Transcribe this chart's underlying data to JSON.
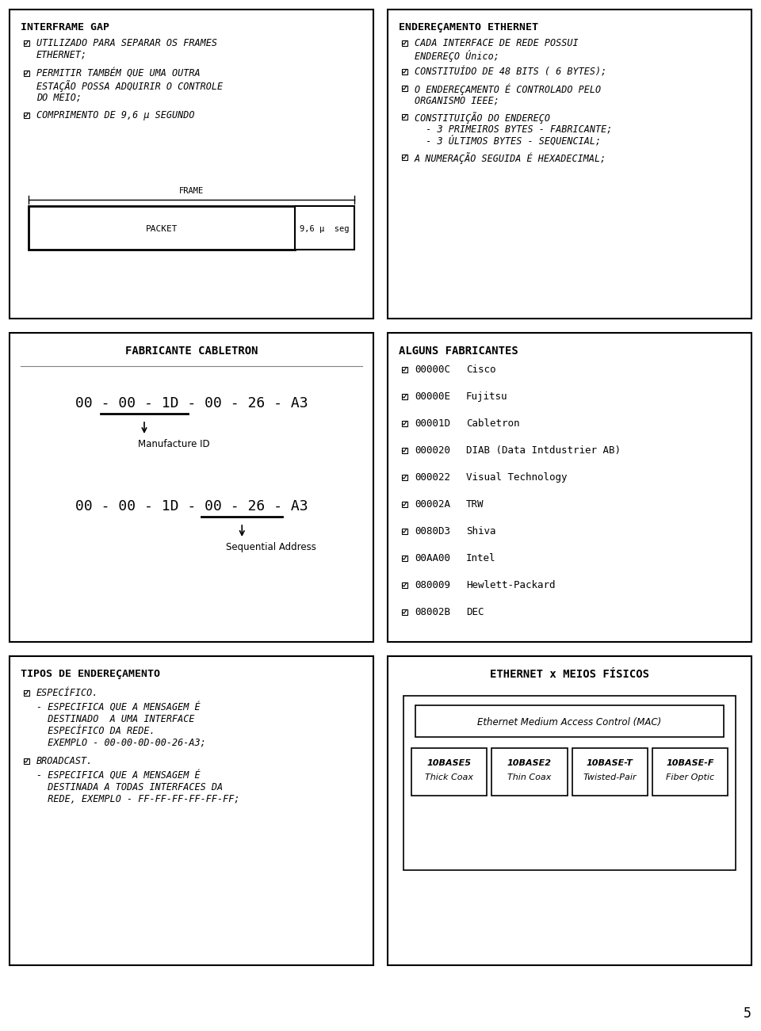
{
  "bg_color": "#ffffff",
  "border_color": "#000000",
  "text_color": "#000000",
  "page_num": "5",
  "panel_top_left": {
    "title": "INTERFRAME GAP",
    "items": [
      "UTILIZADO PARA SEPARAR OS FRAMES\nETHERNET;",
      "PERMITIR TAMBÉM QUE UMA OUTRA\nESTAÇÃO POSSA ADQUIRIR O CONTROLE\nDO MEIO;",
      "COMPRIMENTO DE 9,6 μ SEGUNDO"
    ]
  },
  "panel_top_right": {
    "title": "ENDEREÇAMENTO ETHERNET",
    "items": [
      "CADA INTERFACE DE REDE POSSUI\nENDEREÇO Único;",
      "CONSTITUÍDO DE 48 BITS ( 6 BYTES);",
      "O ENDEREÇAMENTO É CONTROLADO PELO\nORGANISMO IEEE;",
      "CONSTITUIÇÃO DO ENDEREÇO\n  - 3 PRIMEIROS BYTES - FABRICANTE;\n  - 3 ÚLTIMOS BYTES - SEQUENCIAL;",
      "A NUMERAÇÃO SEGUIDA É HEXADECIMAL;"
    ]
  },
  "panel_mid_left": {
    "title": "FABRICANTE CABLETRON",
    "mac": "00 - 00 - 1D - 00 - 26 - A3",
    "label1": "Manufacture ID",
    "label2": "Sequential Address"
  },
  "panel_mid_right": {
    "title": "ALGUNS FABRICANTES",
    "entries": [
      {
        "code": "00000C",
        "name": "Cisco"
      },
      {
        "code": "00000E",
        "name": "Fujitsu"
      },
      {
        "code": "00001D",
        "name": "Cabletron"
      },
      {
        "code": "000020",
        "name": "DIAB (Data Intdustrier AB)"
      },
      {
        "code": "000022",
        "name": "Visual Technology"
      },
      {
        "code": "00002A",
        "name": "TRW"
      },
      {
        "code": "0080D3",
        "name": "Shiva"
      },
      {
        "code": "00AA00",
        "name": "Intel"
      },
      {
        "code": "080009",
        "name": "Hewlett-Packard"
      },
      {
        "code": "08002B",
        "name": "DEC"
      }
    ]
  },
  "panel_bot_left": {
    "title": "TIPOS DE ENDEREÇAMENTO",
    "items": [
      "ESPECÍFICO.",
      "- ESPECIFICA QUE A MENSAGEM É\n  DESTINADO  A UMA INTERFACE\n  ESPECÍFICO DA REDE.\n  EXEMPLO - 00-00-0D-00-26-A3;",
      "BROADCAST.",
      "- ESPECIFICA QUE A MENSAGEM É\n  DESTINADA A TODAS INTERFACES DA\n  REDE, EXEMPLO - FF-FF-FF-FF-FF-FF;"
    ]
  },
  "panel_bot_right": {
    "title": "ETHERNET x MEIOS FÍSICOS",
    "mac_label": "Ethernet Medium Access Control (MAC)",
    "sub_panels": [
      "10BASE5\nThick Coax",
      "10BASE2\nThin Coax",
      "10BASE-T\nTwisted-Pair",
      "10BASE-F\nFiber Optic"
    ]
  }
}
